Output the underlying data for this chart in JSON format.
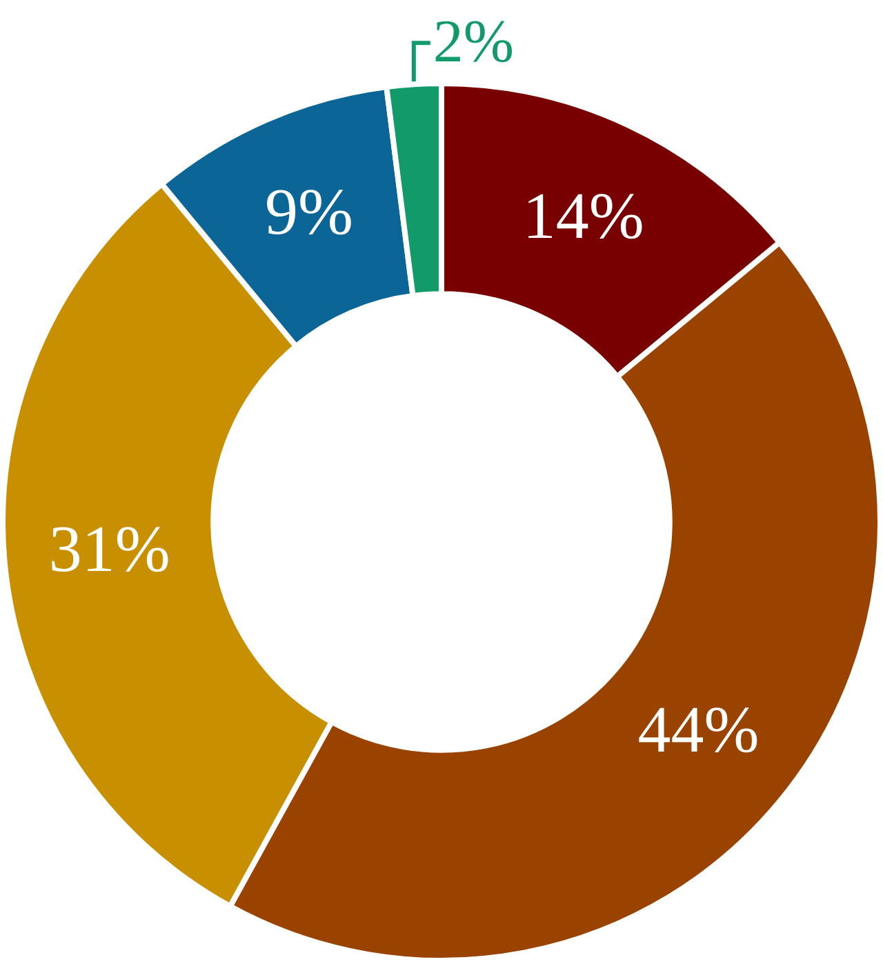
{
  "chart_data": {
    "type": "donut",
    "categories": [
      null,
      null,
      null,
      null,
      null
    ],
    "values": [
      14,
      44,
      31,
      9,
      2
    ],
    "colors": [
      "#780000",
      "#9a4300",
      "#c89000",
      "#0b6596",
      "#139a6a"
    ],
    "value_labels": [
      "14%",
      "44%",
      "31%",
      "9%",
      "2%"
    ]
  }
}
